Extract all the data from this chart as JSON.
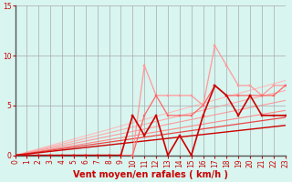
{
  "title": "",
  "xlabel": "Vent moyen/en rafales ( km/h )",
  "bg_color": "#d8f5f0",
  "grid_color": "#aaaaaa",
  "xlim": [
    0,
    23
  ],
  "ylim": [
    0,
    15
  ],
  "xticks": [
    0,
    1,
    2,
    3,
    4,
    5,
    6,
    7,
    8,
    9,
    10,
    11,
    12,
    13,
    14,
    15,
    16,
    17,
    18,
    19,
    20,
    21,
    22,
    23
  ],
  "yticks": [
    0,
    5,
    10,
    15
  ],
  "lines": [
    {
      "x": [
        0,
        1,
        2,
        3,
        4,
        5,
        6,
        7,
        8,
        9,
        10,
        11,
        12,
        13,
        14,
        15,
        16,
        17,
        18,
        19,
        20,
        21,
        22,
        23
      ],
      "y": [
        0,
        0,
        0,
        0,
        0,
        0,
        0,
        0,
        0,
        0,
        0,
        9,
        6,
        6,
        6,
        6,
        5,
        11,
        9,
        7,
        7,
        6,
        7,
        7
      ],
      "color": "#ff9999",
      "lw": 0.9,
      "marker": "s",
      "ms": 2.0,
      "zorder": 3
    },
    {
      "x": [
        0,
        1,
        2,
        3,
        4,
        5,
        6,
        7,
        8,
        9,
        10,
        11,
        12,
        13,
        14,
        15,
        16,
        17,
        18,
        19,
        20,
        21,
        22,
        23
      ],
      "y": [
        0,
        0,
        0,
        0,
        0,
        0,
        0,
        0,
        0,
        0,
        0,
        4,
        6,
        4,
        4,
        4,
        5,
        7,
        6,
        6,
        6,
        6,
        6,
        7
      ],
      "color": "#ff6666",
      "lw": 0.9,
      "marker": "s",
      "ms": 2.0,
      "zorder": 4
    },
    {
      "x": [
        0,
        1,
        2,
        3,
        4,
        5,
        6,
        7,
        8,
        9,
        10,
        11,
        12,
        13,
        14,
        15,
        16,
        17,
        18,
        19,
        20,
        21,
        22,
        23
      ],
      "y": [
        0,
        0,
        0,
        0,
        0,
        0,
        0,
        0,
        0,
        0,
        4,
        2,
        4,
        0,
        2,
        0,
        4,
        7,
        6,
        4,
        6,
        4,
        4,
        4
      ],
      "color": "#cc0000",
      "lw": 1.2,
      "marker": "s",
      "ms": 2.0,
      "zorder": 6
    },
    {
      "x": [
        0,
        23
      ],
      "y": [
        0,
        7.5
      ],
      "color": "#ffbbbb",
      "lw": 0.8,
      "marker": null,
      "ms": 0,
      "zorder": 1
    },
    {
      "x": [
        0,
        23
      ],
      "y": [
        0,
        6.5
      ],
      "color": "#ffaaaa",
      "lw": 0.8,
      "marker": null,
      "ms": 0,
      "zorder": 1
    },
    {
      "x": [
        0,
        23
      ],
      "y": [
        0,
        5.5
      ],
      "color": "#ff9999",
      "lw": 0.8,
      "marker": null,
      "ms": 0,
      "zorder": 1
    },
    {
      "x": [
        0,
        23
      ],
      "y": [
        0,
        4.5
      ],
      "color": "#ff8888",
      "lw": 0.8,
      "marker": null,
      "ms": 0,
      "zorder": 1
    },
    {
      "x": [
        0,
        23
      ],
      "y": [
        0,
        3.8
      ],
      "color": "#ee4444",
      "lw": 0.9,
      "marker": null,
      "ms": 0,
      "zorder": 2
    },
    {
      "x": [
        0,
        23
      ],
      "y": [
        0,
        3.0
      ],
      "color": "#cc0000",
      "lw": 1.0,
      "marker": null,
      "ms": 0,
      "zorder": 2
    }
  ],
  "xlabel_color": "#cc0000",
  "tick_color": "#cc0000",
  "label_fontsize": 7,
  "tick_fontsize": 5.5
}
